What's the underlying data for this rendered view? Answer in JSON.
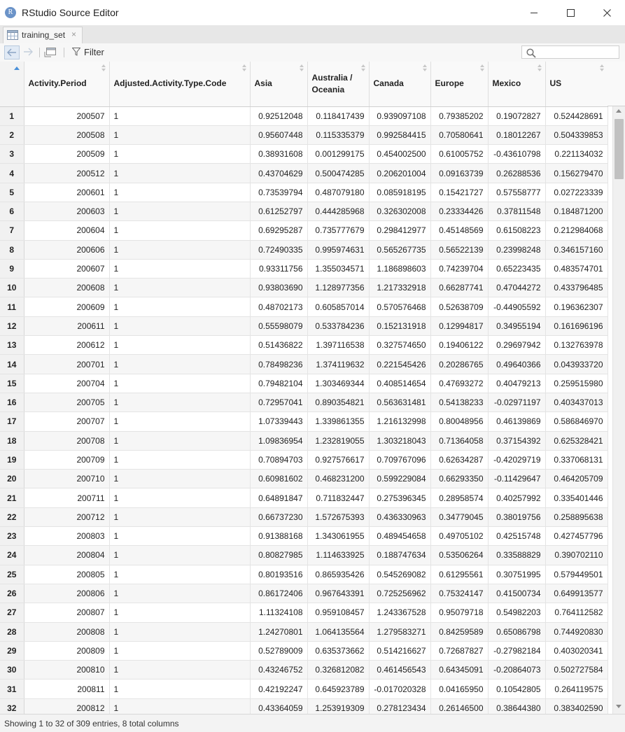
{
  "window": {
    "logo_letter": "R",
    "title": "RStudio Source Editor"
  },
  "tab": {
    "label": "training_set",
    "close_glyph": "×"
  },
  "toolbar": {
    "filter_label": "Filter",
    "search_placeholder": ""
  },
  "table": {
    "columns": [
      "Activity.Period",
      "Adjusted.Activity.Type.Code",
      "Asia",
      "Australia / Oceania",
      "Canada",
      "Europe",
      "Mexico",
      "US"
    ],
    "rows": [
      [
        "1",
        "200507",
        "1",
        "0.92512048",
        "0.118417439",
        "0.939097108",
        "0.79385202",
        "0.19072827",
        "0.524428691"
      ],
      [
        "2",
        "200508",
        "1",
        "0.95607448",
        "0.115335379",
        "0.992584415",
        "0.70580641",
        "0.18012267",
        "0.504339853"
      ],
      [
        "3",
        "200509",
        "1",
        "0.38931608",
        "0.001299175",
        "0.454002500",
        "0.61005752",
        "-0.43610798",
        "0.221134032"
      ],
      [
        "4",
        "200512",
        "1",
        "0.43704629",
        "0.500474285",
        "0.206201004",
        "0.09163739",
        "0.26288536",
        "0.156279470"
      ],
      [
        "5",
        "200601",
        "1",
        "0.73539794",
        "0.487079180",
        "0.085918195",
        "0.15421727",
        "0.57558777",
        "0.027223339"
      ],
      [
        "6",
        "200603",
        "1",
        "0.61252797",
        "0.444285968",
        "0.326302008",
        "0.23334426",
        "0.37811548",
        "0.184871200"
      ],
      [
        "7",
        "200604",
        "1",
        "0.69295287",
        "0.735777679",
        "0.298412977",
        "0.45148569",
        "0.61508223",
        "0.212984068"
      ],
      [
        "8",
        "200606",
        "1",
        "0.72490335",
        "0.995974631",
        "0.565267735",
        "0.56522139",
        "0.23998248",
        "0.346157160"
      ],
      [
        "9",
        "200607",
        "1",
        "0.93311756",
        "1.355034571",
        "1.186898603",
        "0.74239704",
        "0.65223435",
        "0.483574701"
      ],
      [
        "10",
        "200608",
        "1",
        "0.93803690",
        "1.128977356",
        "1.217332918",
        "0.66287741",
        "0.47044272",
        "0.433796485"
      ],
      [
        "11",
        "200609",
        "1",
        "0.48702173",
        "0.605857014",
        "0.570576468",
        "0.52638709",
        "-0.44905592",
        "0.196362307"
      ],
      [
        "12",
        "200611",
        "1",
        "0.55598079",
        "0.533784236",
        "0.152131918",
        "0.12994817",
        "0.34955194",
        "0.161696196"
      ],
      [
        "13",
        "200612",
        "1",
        "0.51436822",
        "1.397116538",
        "0.327574650",
        "0.19406122",
        "0.29697942",
        "0.132763978"
      ],
      [
        "14",
        "200701",
        "1",
        "0.78498236",
        "1.374119632",
        "0.221545426",
        "0.20286765",
        "0.49640366",
        "0.043933720"
      ],
      [
        "15",
        "200704",
        "1",
        "0.79482104",
        "1.303469344",
        "0.408514654",
        "0.47693272",
        "0.40479213",
        "0.259515980"
      ],
      [
        "16",
        "200705",
        "1",
        "0.72957041",
        "0.890354821",
        "0.563631481",
        "0.54138233",
        "-0.02971197",
        "0.403437013"
      ],
      [
        "17",
        "200707",
        "1",
        "1.07339443",
        "1.339861355",
        "1.216132998",
        "0.80048956",
        "0.46139869",
        "0.586846970"
      ],
      [
        "18",
        "200708",
        "1",
        "1.09836954",
        "1.232819055",
        "1.303218043",
        "0.71364058",
        "0.37154392",
        "0.625328421"
      ],
      [
        "19",
        "200709",
        "1",
        "0.70894703",
        "0.927576617",
        "0.709767096",
        "0.62634287",
        "-0.42029719",
        "0.337068131"
      ],
      [
        "20",
        "200710",
        "1",
        "0.60981602",
        "0.468231200",
        "0.599229084",
        "0.66293350",
        "-0.11429647",
        "0.464205709"
      ],
      [
        "21",
        "200711",
        "1",
        "0.64891847",
        "0.711832447",
        "0.275396345",
        "0.28958574",
        "0.40257992",
        "0.335401446"
      ],
      [
        "22",
        "200712",
        "1",
        "0.66737230",
        "1.572675393",
        "0.436330963",
        "0.34779045",
        "0.38019756",
        "0.258895638"
      ],
      [
        "23",
        "200803",
        "1",
        "0.91388168",
        "1.343061955",
        "0.489454658",
        "0.49705102",
        "0.42515748",
        "0.427457796"
      ],
      [
        "24",
        "200804",
        "1",
        "0.80827985",
        "1.114633925",
        "0.188747634",
        "0.53506264",
        "0.33588829",
        "0.390702110"
      ],
      [
        "25",
        "200805",
        "1",
        "0.80193516",
        "0.865935426",
        "0.545269082",
        "0.61295561",
        "0.30751995",
        "0.579449501"
      ],
      [
        "26",
        "200806",
        "1",
        "0.86172406",
        "0.967643391",
        "0.725256962",
        "0.75324147",
        "0.41500734",
        "0.649913577"
      ],
      [
        "27",
        "200807",
        "1",
        "1.11324108",
        "0.959108457",
        "1.243367528",
        "0.95079718",
        "0.54982203",
        "0.764112582"
      ],
      [
        "28",
        "200808",
        "1",
        "1.24270801",
        "1.064135564",
        "1.279583271",
        "0.84259589",
        "0.65086798",
        "0.744920830"
      ],
      [
        "29",
        "200809",
        "1",
        "0.52789009",
        "0.635373662",
        "0.514216627",
        "0.72687827",
        "-0.27982184",
        "0.403020341"
      ],
      [
        "30",
        "200810",
        "1",
        "0.43246752",
        "0.326812082",
        "0.461456543",
        "0.64345091",
        "-0.20864073",
        "0.502727584"
      ],
      [
        "31",
        "200811",
        "1",
        "0.42192247",
        "0.645923789",
        "-0.017020328",
        "0.04165950",
        "0.10542805",
        "0.264119575"
      ],
      [
        "32",
        "200812",
        "1",
        "0.43364059",
        "1.253919309",
        "0.278123434",
        "0.26146500",
        "0.38644380",
        "0.383402590"
      ]
    ]
  },
  "status": {
    "text": "Showing 1 to 32 of 309 entries, 8 total columns"
  }
}
